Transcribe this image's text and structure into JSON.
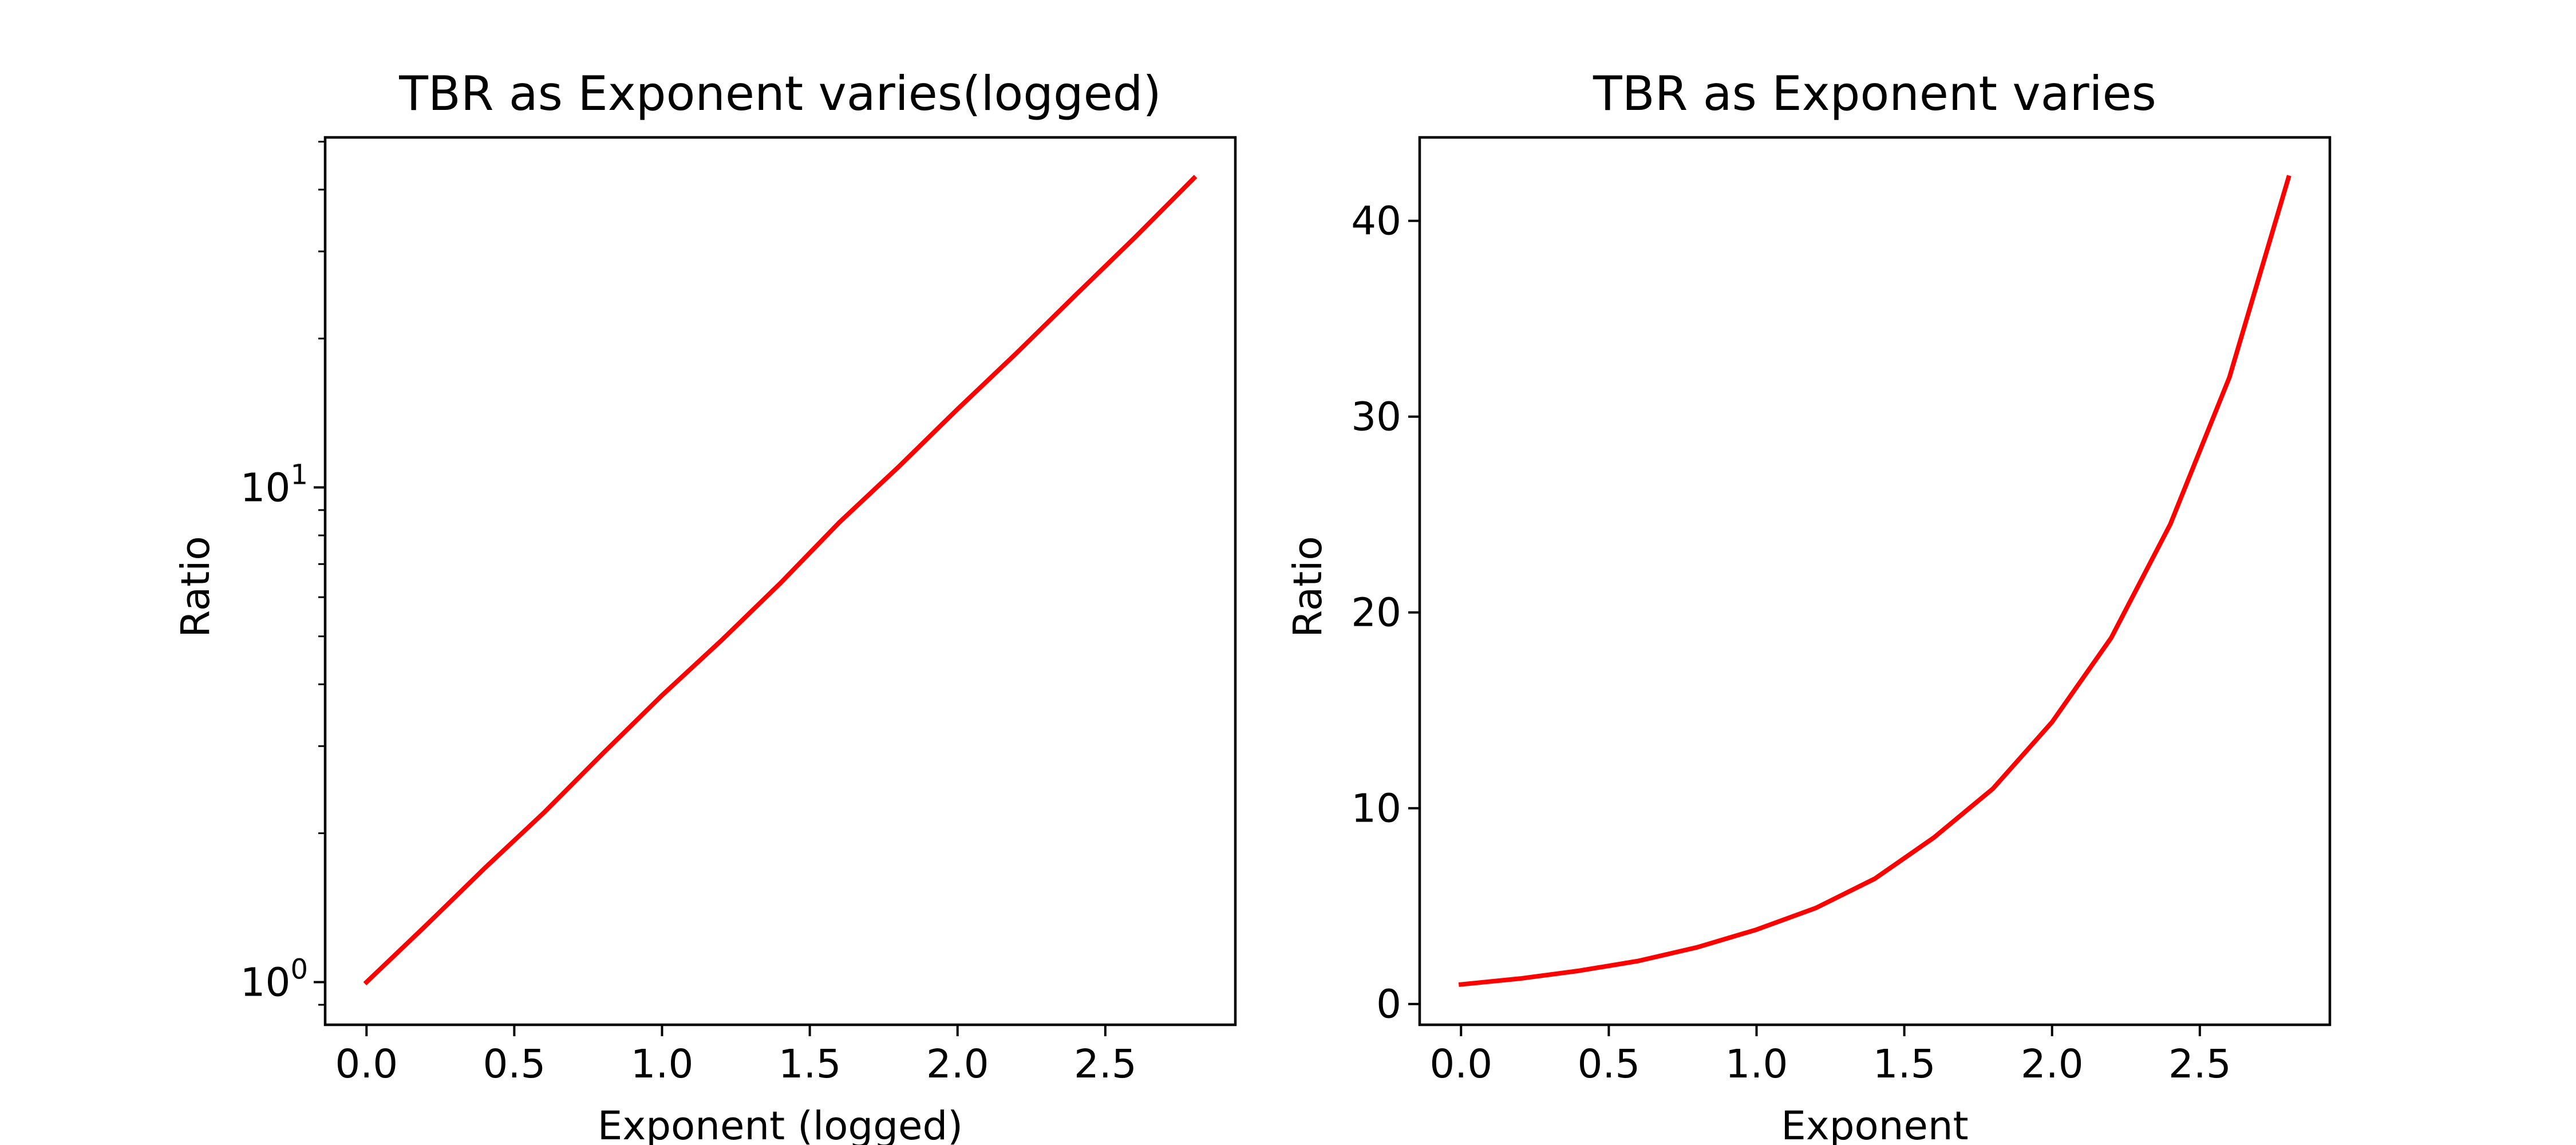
{
  "chart_data": [
    {
      "type": "line",
      "title": "TBR as Exponent varies(logged)",
      "xlabel": "Exponent (logged)",
      "ylabel": "Ratio",
      "yscale": "log",
      "xlim": [
        -0.14,
        2.94
      ],
      "ylim": [
        0.82,
        51.0
      ],
      "xticks": [
        0.0,
        0.5,
        1.0,
        1.5,
        2.0,
        2.5
      ],
      "xtick_labels": [
        "0.0",
        "0.5",
        "1.0",
        "1.5",
        "2.0",
        "2.5"
      ],
      "yticks": [
        {
          "value": 1,
          "base": "10",
          "exponent": "0"
        },
        {
          "value": 10,
          "base": "10",
          "exponent": "1"
        }
      ],
      "grid": false,
      "color": "#ff0000",
      "series": [
        {
          "x": [
            0.0,
            0.2,
            0.4,
            0.6,
            0.8,
            1.0,
            1.2,
            1.4,
            1.6,
            1.8,
            2.0,
            2.2,
            2.4,
            2.6,
            2.8
          ],
          "y": [
            1.0,
            1.3,
            1.7,
            2.2,
            2.9,
            3.8,
            4.9,
            6.4,
            8.5,
            11.0,
            14.4,
            18.7,
            24.5,
            32.0,
            42.2
          ]
        }
      ]
    },
    {
      "type": "line",
      "title": "TBR as Exponent varies",
      "xlabel": "Exponent",
      "ylabel": "Ratio",
      "yscale": "linear",
      "xlim": [
        -0.14,
        2.94
      ],
      "ylim": [
        -1.06,
        44.26
      ],
      "xticks": [
        0.0,
        0.5,
        1.0,
        1.5,
        2.0,
        2.5
      ],
      "xtick_labels": [
        "0.0",
        "0.5",
        "1.0",
        "1.5",
        "2.0",
        "2.5"
      ],
      "yticks": [
        0,
        10,
        20,
        30,
        40
      ],
      "ytick_labels": [
        "0",
        "10",
        "20",
        "30",
        "40"
      ],
      "grid": false,
      "color": "#ff0000",
      "series": [
        {
          "x": [
            0.0,
            0.2,
            0.4,
            0.6,
            0.8,
            1.0,
            1.2,
            1.4,
            1.6,
            1.8,
            2.0,
            2.2,
            2.4,
            2.6,
            2.8
          ],
          "y": [
            1.0,
            1.3,
            1.7,
            2.2,
            2.9,
            3.8,
            4.9,
            6.4,
            8.5,
            11.0,
            14.4,
            18.7,
            24.5,
            32.0,
            42.2
          ]
        }
      ]
    }
  ]
}
